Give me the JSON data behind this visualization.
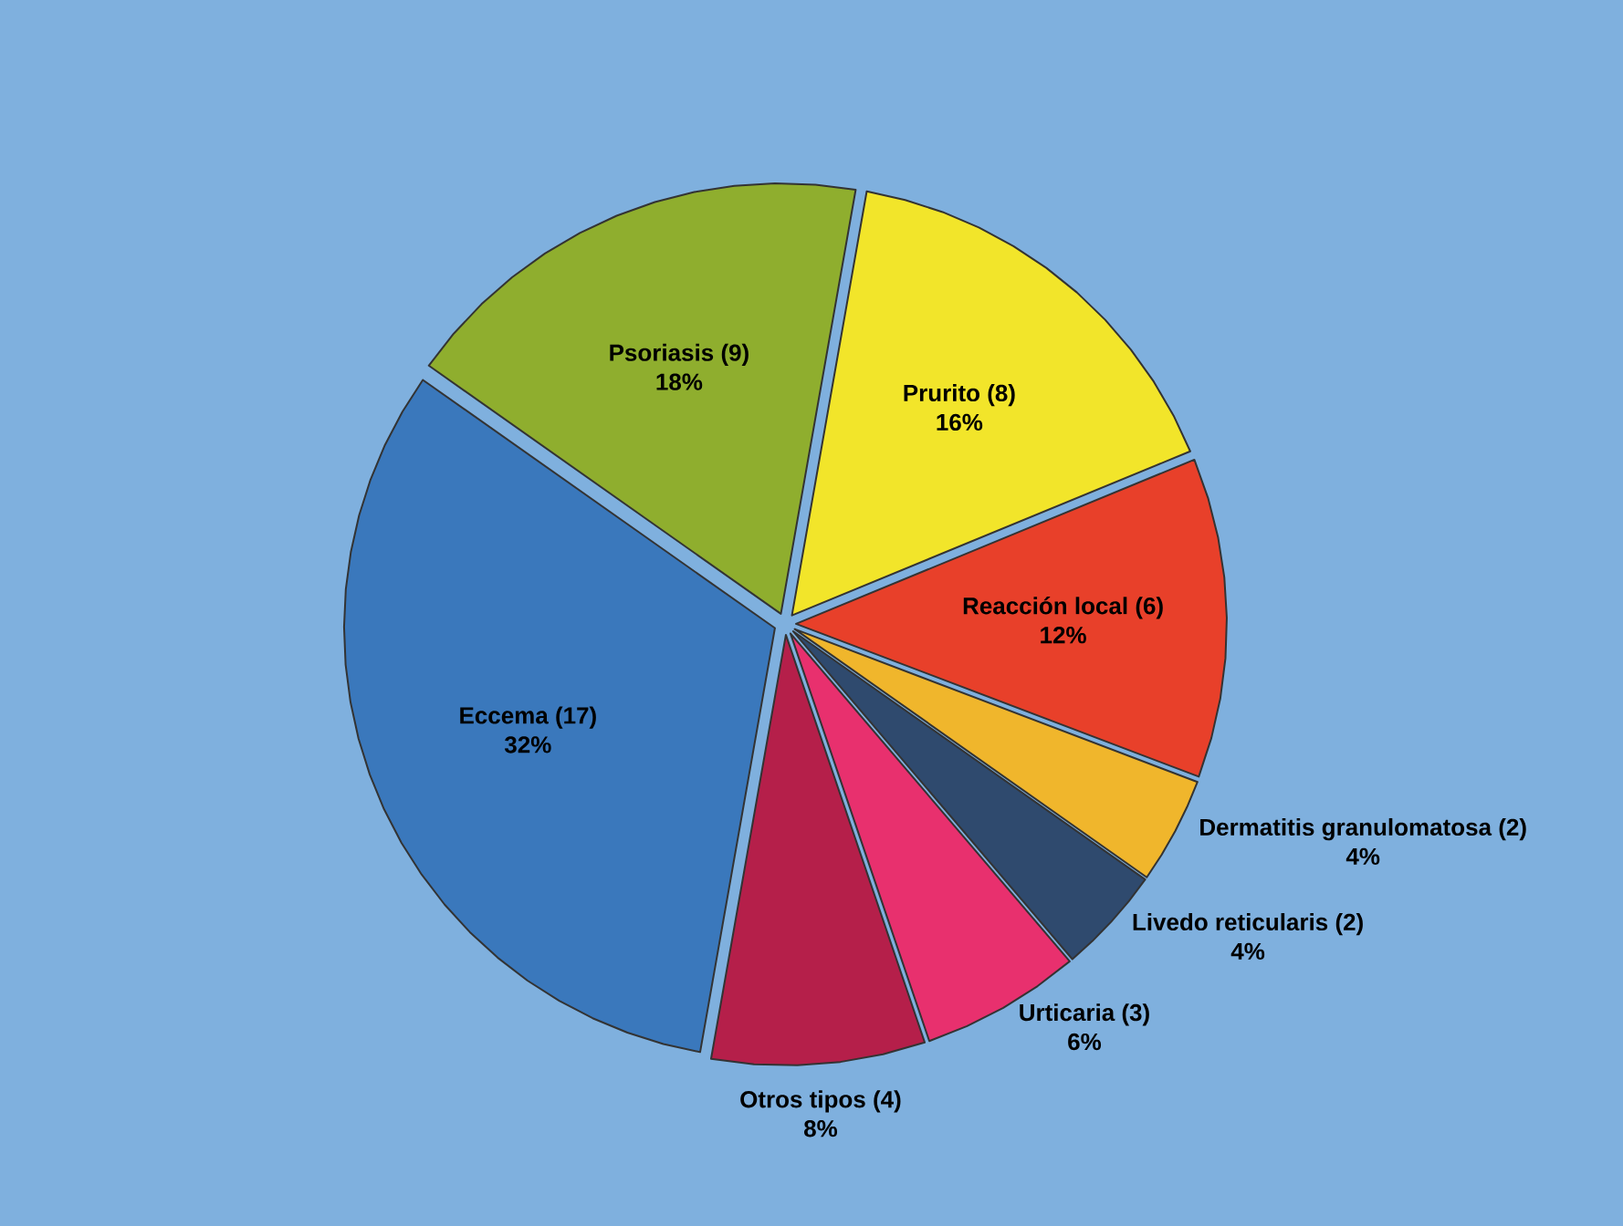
{
  "chart_data": {
    "type": "pie",
    "categories": [
      "Prurito (8)",
      "Reacción local (6)",
      "Dermatitis granulomatosa (2)",
      "Livedo reticularis (2)",
      "Urticaria (3)",
      "Otros tipos (4)",
      "Eccema (17)",
      "Psoriasis (9)"
    ],
    "values": [
      16,
      12,
      4,
      4,
      6,
      8,
      32,
      18
    ],
    "value_labels": [
      "16%",
      "12%",
      "4%",
      "4%",
      "6%",
      "8%",
      "32%",
      "18%"
    ],
    "colors": [
      "#f2e52a",
      "#e8402a",
      "#f0b62c",
      "#2f4a6e",
      "#e8306e",
      "#b51f4a",
      "#3a78bc",
      "#8fae2e"
    ]
  }
}
